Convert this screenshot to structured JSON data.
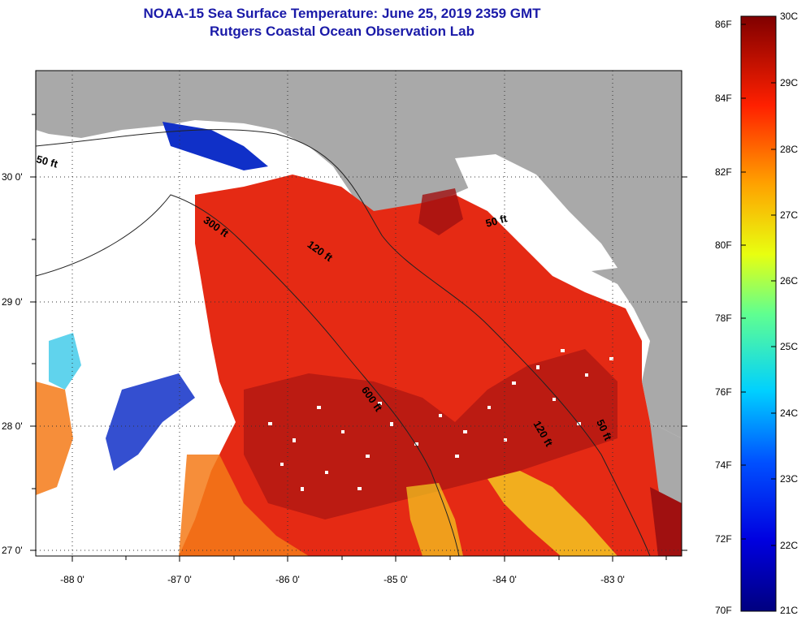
{
  "title": {
    "line1": "NOAA-15 Sea Surface Temperature:  June 25, 2019 2359 GMT",
    "line2": "Rutgers Coastal Ocean Observation Lab"
  },
  "map": {
    "lon_ticks": [
      "-88 0'",
      "-87 0'",
      "-86 0'",
      "-85 0'",
      "-84 0'",
      "-83 0'"
    ],
    "lat_ticks": [
      "30 0'",
      "29 0'",
      "28 0'",
      "27 0'"
    ],
    "contour_labels": [
      "50 ft",
      "300 ft",
      "120 ft",
      "50 ft",
      "600 ft",
      "120 ft",
      "50 ft"
    ],
    "colors": {
      "land": "#a9a9a9",
      "no_data": "#ffffff",
      "warm": "#e52a14",
      "hot": "#a01010",
      "orange": "#f57a18",
      "yellow": "#f5d020",
      "cyan": "#38c8e8",
      "blue": "#1030c8",
      "navy": "#0a0a80"
    }
  },
  "colorbar": {
    "fahrenheit": [
      "86F",
      "84F",
      "82F",
      "80F",
      "78F",
      "76F",
      "74F",
      "72F",
      "70F"
    ],
    "celsius": [
      "30C",
      "29C",
      "28C",
      "27C",
      "26C",
      "25C",
      "24C",
      "23C",
      "22C",
      "21C"
    ]
  }
}
